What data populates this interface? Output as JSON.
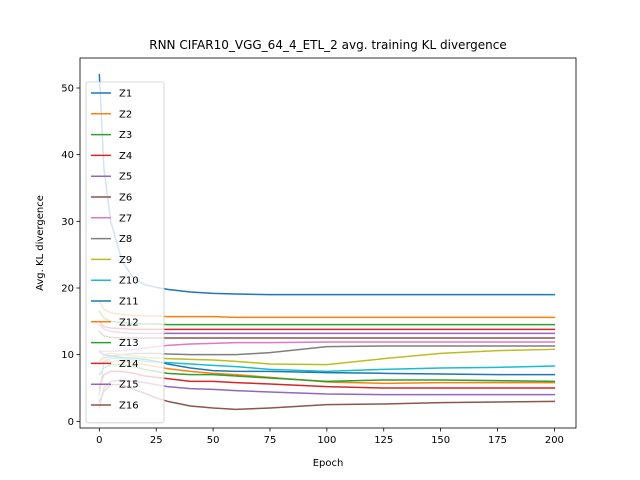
{
  "chart_data": {
    "type": "line",
    "title": "RNN CIFAR10_VGG_64_4_ETL_2 avg. training KL divergence",
    "xlabel": "Epoch",
    "ylabel": "Avg. KL divergence",
    "xlim": [
      -8.5,
      209.5
    ],
    "ylim": [
      -1,
      54.5
    ],
    "xticks": [
      0,
      25,
      50,
      75,
      100,
      125,
      150,
      175,
      200
    ],
    "yticks": [
      0,
      10,
      20,
      30,
      40,
      50
    ],
    "grid": false,
    "legend_position": "upper-left",
    "x": [
      0,
      2,
      5,
      10,
      15,
      20,
      25,
      30,
      40,
      50,
      60,
      75,
      100,
      125,
      150,
      175,
      200
    ],
    "series": [
      {
        "name": "Z1",
        "color": "#1f77b4",
        "values": [
          52.0,
          38.0,
          30.0,
          24.0,
          21.5,
          20.5,
          20.1,
          19.8,
          19.4,
          19.2,
          19.1,
          19.0,
          19.0,
          19.0,
          19.0,
          19.0,
          19.0
        ]
      },
      {
        "name": "Z2",
        "color": "#ff7f0e",
        "values": [
          18.0,
          16.8,
          16.3,
          16.0,
          15.9,
          15.8,
          15.8,
          15.7,
          15.7,
          15.7,
          15.6,
          15.6,
          15.6,
          15.6,
          15.6,
          15.6,
          15.6
        ]
      },
      {
        "name": "Z3",
        "color": "#2ca02c",
        "values": [
          16.5,
          15.5,
          15.0,
          14.8,
          14.7,
          14.6,
          14.6,
          14.5,
          14.5,
          14.5,
          14.5,
          14.5,
          14.5,
          14.5,
          14.5,
          14.5,
          14.5
        ]
      },
      {
        "name": "Z4",
        "color": "#d62728",
        "values": [
          15.0,
          14.2,
          14.0,
          13.9,
          13.8,
          13.8,
          13.8,
          13.8,
          13.8,
          13.8,
          13.8,
          13.8,
          13.8,
          13.8,
          13.8,
          13.8,
          13.8
        ]
      },
      {
        "name": "Z5",
        "color": "#9467bd",
        "values": [
          14.5,
          13.8,
          13.5,
          13.3,
          13.2,
          13.2,
          13.2,
          13.2,
          13.2,
          13.2,
          13.2,
          13.2,
          13.2,
          13.2,
          13.2,
          13.2,
          13.2
        ]
      },
      {
        "name": "Z6",
        "color": "#8c564b",
        "values": [
          13.5,
          12.8,
          12.6,
          12.5,
          12.5,
          12.5,
          12.5,
          12.5,
          12.5,
          12.5,
          12.5,
          12.5,
          12.5,
          12.5,
          12.5,
          12.5,
          12.5
        ]
      },
      {
        "name": "Z7",
        "color": "#e377c2",
        "values": [
          10.5,
          10.5,
          10.5,
          10.6,
          10.8,
          11.0,
          11.2,
          11.4,
          11.6,
          11.7,
          11.8,
          11.8,
          11.9,
          11.9,
          11.9,
          11.9,
          11.9
        ]
      },
      {
        "name": "Z8",
        "color": "#7f7f7f",
        "values": [
          9.0,
          9.5,
          9.8,
          10.0,
          10.2,
          10.2,
          10.2,
          10.1,
          10.0,
          10.0,
          10.0,
          10.3,
          11.2,
          11.3,
          11.3,
          11.3,
          11.3
        ]
      },
      {
        "name": "Z9",
        "color": "#bcbd22",
        "values": [
          9.0,
          10.0,
          10.2,
          10.0,
          9.8,
          9.6,
          9.5,
          9.4,
          9.3,
          9.2,
          9.0,
          8.6,
          8.5,
          9.4,
          10.2,
          10.6,
          10.8
        ]
      },
      {
        "name": "Z10",
        "color": "#17becf",
        "values": [
          4.0,
          9.0,
          9.5,
          9.4,
          9.2,
          9.0,
          8.9,
          8.8,
          8.6,
          8.4,
          8.2,
          7.8,
          7.5,
          7.8,
          8.0,
          8.1,
          8.3
        ]
      },
      {
        "name": "Z11",
        "color": "#1f77b4",
        "values": [
          10.5,
          10.0,
          9.8,
          9.6,
          9.5,
          9.3,
          9.0,
          8.6,
          8.0,
          7.6,
          7.5,
          7.5,
          7.3,
          7.2,
          7.1,
          7.0,
          7.0
        ]
      },
      {
        "name": "Z12",
        "color": "#ff7f0e",
        "values": [
          8.5,
          9.0,
          9.0,
          9.0,
          8.8,
          8.5,
          8.2,
          7.9,
          7.5,
          7.2,
          7.0,
          6.6,
          5.9,
          5.7,
          5.8,
          5.8,
          5.8
        ]
      },
      {
        "name": "Z13",
        "color": "#2ca02c",
        "values": [
          7.0,
          8.0,
          8.5,
          8.5,
          8.2,
          7.8,
          7.5,
          7.2,
          7.0,
          7.0,
          6.8,
          6.5,
          6.0,
          6.2,
          6.2,
          6.1,
          6.0
        ]
      },
      {
        "name": "Z14",
        "color": "#d62728",
        "values": [
          5.0,
          7.0,
          7.5,
          7.5,
          7.2,
          6.8,
          6.6,
          6.4,
          6.0,
          6.0,
          5.8,
          5.6,
          5.2,
          5.0,
          5.0,
          5.0,
          5.0
        ]
      },
      {
        "name": "Z15",
        "color": "#9467bd",
        "values": [
          2.0,
          5.0,
          6.0,
          6.2,
          6.0,
          5.8,
          5.5,
          5.2,
          4.9,
          4.8,
          4.6,
          4.4,
          4.1,
          4.0,
          4.0,
          4.0,
          4.0
        ]
      },
      {
        "name": "Z16",
        "color": "#8c564b",
        "values": [
          3.0,
          4.5,
          5.5,
          5.5,
          4.8,
          4.2,
          3.5,
          3.0,
          2.3,
          2.0,
          1.8,
          2.0,
          2.5,
          2.6,
          2.8,
          2.9,
          3.0
        ]
      }
    ]
  }
}
